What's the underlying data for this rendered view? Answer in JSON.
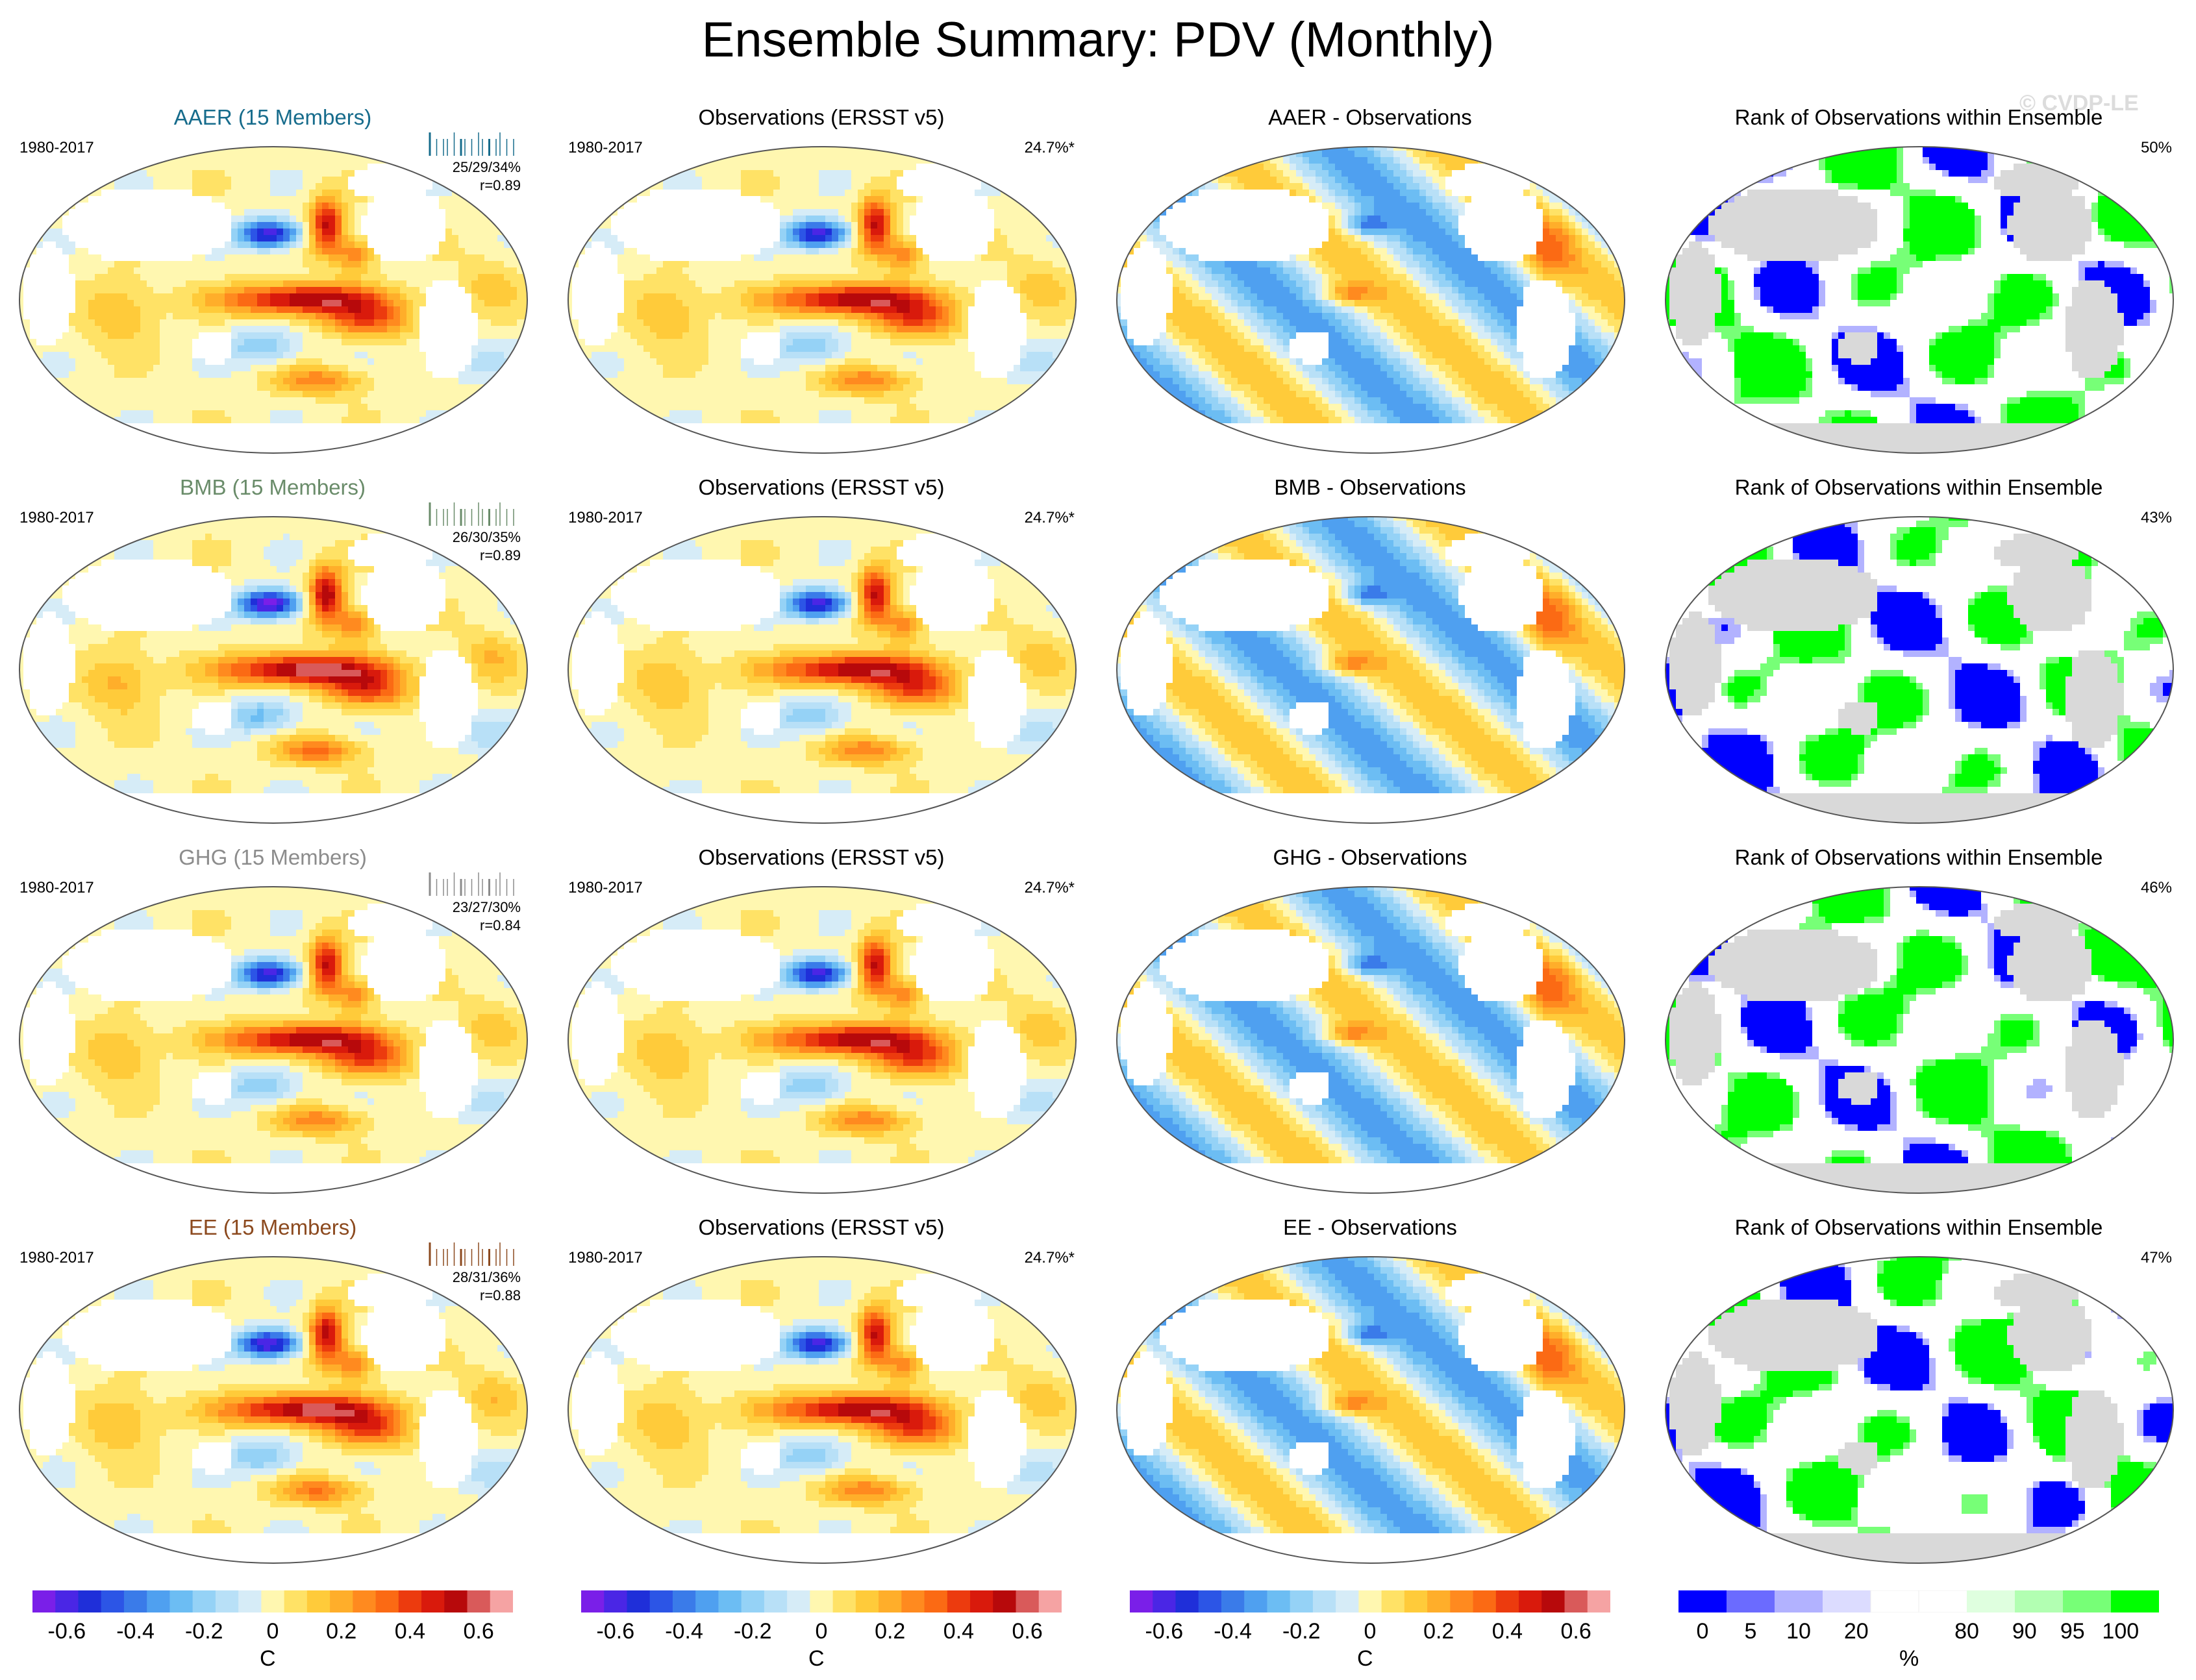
{
  "title": "Ensemble Summary: PDV (Monthly)",
  "watermark": "© CVDP-LE",
  "palette_temp": [
    "#7a1fe8",
    "#4a26e5",
    "#1f2fd9",
    "#2c55e6",
    "#3a7be9",
    "#4fa0f0",
    "#6cbdf3",
    "#95d2f6",
    "#b8e0f7",
    "#d6ecf7",
    "#fff7b0",
    "#ffe266",
    "#ffcb3a",
    "#ffae2a",
    "#ff8a1f",
    "#fb6a14",
    "#ec3b0e",
    "#d91a0c",
    "#b7090b",
    "#d95a5a",
    "#f5a3a3"
  ],
  "palette_rank": [
    "#0000ff",
    "#6b6bff",
    "#b2b2ff",
    "#dcdcff",
    "#ffffff",
    "#ffffff",
    "#dfffdf",
    "#b2ffb2",
    "#77ff77",
    "#00ff00"
  ],
  "rows": [
    {
      "ensemble": {
        "title": "AAER (15 Members)",
        "title_color": "#176c8c",
        "period": "1980-2017",
        "stats": "25/29/34%",
        "r": "r=0.89",
        "pattern_amp": 1.0
      },
      "obs": {
        "title": "Observations (ERSST v5)",
        "period": "1980-2017",
        "pct": "24.7%*"
      },
      "diff": {
        "title": "AAER - Observations"
      },
      "rank": {
        "title": "Rank of Observations within Ensemble",
        "pct": "50%"
      }
    },
    {
      "ensemble": {
        "title": "BMB (15 Members)",
        "title_color": "#6a8c6a",
        "period": "1980-2017",
        "stats": "26/30/35%",
        "r": "r=0.89",
        "pattern_amp": 1.1
      },
      "obs": {
        "title": "Observations (ERSST v5)",
        "period": "1980-2017",
        "pct": "24.7%*"
      },
      "diff": {
        "title": "BMB - Observations"
      },
      "rank": {
        "title": "Rank of Observations within Ensemble",
        "pct": "43%"
      }
    },
    {
      "ensemble": {
        "title": "GHG (15 Members)",
        "title_color": "#8c8c8c",
        "period": "1980-2017",
        "stats": "23/27/30%",
        "r": "r=0.84",
        "pattern_amp": 1.0
      },
      "obs": {
        "title": "Observations (ERSST v5)",
        "period": "1980-2017",
        "pct": "24.7%*"
      },
      "diff": {
        "title": "GHG - Observations"
      },
      "rank": {
        "title": "Rank of Observations within Ensemble",
        "pct": "46%"
      }
    },
    {
      "ensemble": {
        "title": "EE (15 Members)",
        "title_color": "#8c4a1f",
        "period": "1980-2017",
        "stats": "28/31/36%",
        "r": "r=0.88",
        "pattern_amp": 1.05
      },
      "obs": {
        "title": "Observations (ERSST v5)",
        "period": "1980-2017",
        "pct": "24.7%*"
      },
      "diff": {
        "title": "EE - Observations"
      },
      "rank": {
        "title": "Rank of Observations within Ensemble",
        "pct": "47%"
      }
    }
  ],
  "colorbars": [
    {
      "labels": [
        "-0.6",
        "-0.4",
        "-0.2",
        "0",
        "0.2",
        "0.4",
        "0.6"
      ],
      "values": [
        -0.6,
        -0.4,
        -0.2,
        0,
        0.2,
        0.4,
        0.6
      ],
      "range": [
        -0.7,
        0.7
      ],
      "unit": "C"
    },
    {
      "labels": [
        "-0.6",
        "-0.4",
        "-0.2",
        "0",
        "0.2",
        "0.4",
        "0.6"
      ],
      "values": [
        -0.6,
        -0.4,
        -0.2,
        0,
        0.2,
        0.4,
        0.6
      ],
      "range": [
        -0.7,
        0.7
      ],
      "unit": "C"
    },
    {
      "labels": [
        "-0.6",
        "-0.4",
        "-0.2",
        "0",
        "0.2",
        "0.4",
        "0.6"
      ],
      "values": [
        -0.6,
        -0.4,
        -0.2,
        0,
        0.2,
        0.4,
        0.6
      ],
      "range": [
        -0.7,
        0.7
      ],
      "unit": "C"
    },
    {
      "labels": [
        "0",
        "5",
        "10",
        "20",
        "80",
        "90",
        "95",
        "100"
      ],
      "unit": "%"
    }
  ]
}
